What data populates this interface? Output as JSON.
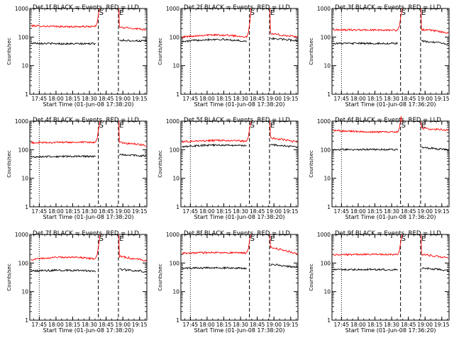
{
  "chart_data": [
    {
      "type": "line",
      "title": "Det 1f BLACK = Events, RED = LLD",
      "xlabel": "Start Time (01-Jun-08 17:38:20)",
      "ylabel": "Counts/sec",
      "yscale": "log",
      "ylim": [
        1,
        1000
      ],
      "yticks": [
        "1",
        "10",
        "100",
        "1000"
      ],
      "xticks": [
        "17:45",
        "18:00",
        "18:15",
        "18:30",
        "18:45",
        "19:00",
        "19:15"
      ],
      "markers": [
        {
          "time": "17:45",
          "style": "dotted"
        },
        {
          "time": "18:38",
          "style": "dashed",
          "label": "S"
        },
        {
          "time": "18:56",
          "style": "dashed",
          "label": "E"
        }
      ],
      "series": [
        {
          "color": "#ff0000",
          "start": 250,
          "mid": 240,
          "end": 235,
          "after": 220,
          "end_after": 185
        },
        {
          "color": "#000000",
          "start": 62,
          "mid": 60,
          "end": 59,
          "after": 78,
          "end_after": 72
        }
      ]
    },
    {
      "type": "line",
      "title": "Det 2f BLACK = Events, RED = LLD",
      "xlabel": "Start Time (01-Jun-08 17:38:20)",
      "ylabel": "Counts/sec",
      "yscale": "log",
      "ylim": [
        1,
        1000
      ],
      "yticks": [
        "1",
        "10",
        "100",
        "1000"
      ],
      "xticks": [
        "17:45",
        "18:00",
        "18:15",
        "18:30",
        "18:45",
        "19:00",
        "19:15"
      ],
      "markers": [
        {
          "time": "17:45",
          "style": "dotted"
        },
        {
          "time": "18:38",
          "style": "dashed",
          "label": "S"
        },
        {
          "time": "18:56",
          "style": "dashed",
          "label": "E"
        }
      ],
      "series": [
        {
          "color": "#ff0000",
          "start": 100,
          "mid": 118,
          "end": 102,
          "after": 130,
          "end_after": 100
        },
        {
          "color": "#000000",
          "start": 68,
          "mid": 82,
          "end": 70,
          "after": 90,
          "end_after": 75
        }
      ]
    },
    {
      "type": "line",
      "title": "Det 3f BLACK = Events, RED = LLD",
      "xlabel": "Start Time (01-Jun-08 17:36:20)",
      "ylabel": "Counts/sec",
      "yscale": "log",
      "ylim": [
        1,
        1000
      ],
      "yticks": [
        "1",
        "10",
        "100",
        "1000"
      ],
      "xticks": [
        "17:45",
        "18:00",
        "18:15",
        "18:30",
        "18:45",
        "19:00",
        "19:15"
      ],
      "markers": [
        {
          "time": "17:45",
          "style": "dotted"
        },
        {
          "time": "18:38",
          "style": "dashed",
          "label": "S"
        },
        {
          "time": "18:56",
          "style": "dashed",
          "label": "E"
        }
      ],
      "series": [
        {
          "color": "#ff0000",
          "start": 180,
          "mid": 180,
          "end": 175,
          "after": 185,
          "end_after": 140
        },
        {
          "color": "#000000",
          "start": 60,
          "mid": 60,
          "end": 60,
          "after": 72,
          "end_after": 58
        }
      ]
    },
    {
      "type": "line",
      "title": "Det 4f BLACK = Events, RED = LLD",
      "xlabel": "Start Time (01-Jun-08 17:38:20)",
      "ylabel": "Counts/sec",
      "yscale": "log",
      "ylim": [
        1,
        1000
      ],
      "yticks": [
        "1",
        "10",
        "100",
        "1000"
      ],
      "xticks": [
        "17:45",
        "18:00",
        "18:15",
        "18:30",
        "18:45",
        "19:00",
        "19:15"
      ],
      "markers": [
        {
          "time": "17:45",
          "style": "dotted"
        },
        {
          "time": "18:38",
          "style": "dashed",
          "label": "S"
        },
        {
          "time": "18:56",
          "style": "dashed",
          "label": "E"
        }
      ],
      "series": [
        {
          "color": "#ff0000",
          "start": 175,
          "mid": 178,
          "end": 180,
          "after": 180,
          "end_after": 140
        },
        {
          "color": "#000000",
          "start": 56,
          "mid": 57,
          "end": 58,
          "after": 68,
          "end_after": 60
        }
      ]
    },
    {
      "type": "line",
      "title": "Det 5f BLACK = Events, RED = LLD",
      "xlabel": "Start Time (01-Jun-08 17:38:20)",
      "ylabel": "Counts/sec",
      "yscale": "log",
      "ylim": [
        1,
        1000
      ],
      "yticks": [
        "1",
        "10",
        "100",
        "1000"
      ],
      "xticks": [
        "17:45",
        "18:00",
        "18:15",
        "18:30",
        "18:45",
        "19:00",
        "19:15"
      ],
      "markers": [
        {
          "time": "17:45",
          "style": "dotted"
        },
        {
          "time": "18:38",
          "style": "dashed",
          "label": "S"
        },
        {
          "time": "18:56",
          "style": "dashed",
          "label": "E"
        }
      ],
      "series": [
        {
          "color": "#ff0000",
          "start": 190,
          "mid": 205,
          "end": 200,
          "after": 260,
          "end_after": 185
        },
        {
          "color": "#000000",
          "start": 130,
          "mid": 140,
          "end": 138,
          "after": 150,
          "end_after": 125
        }
      ]
    },
    {
      "type": "line",
      "title": "Det 6f BLACK = Events, RED = LLD",
      "xlabel": "Start Time (01-Jun-08 17:36:20)",
      "ylabel": "Counts/sec",
      "yscale": "log",
      "ylim": [
        1,
        1000
      ],
      "yticks": [
        "1",
        "10",
        "100",
        "1000"
      ],
      "xticks": [
        "17:45",
        "18:00",
        "18:15",
        "18:30",
        "18:45",
        "19:00",
        "19:15"
      ],
      "markers": [
        {
          "time": "17:45",
          "style": "dotted"
        },
        {
          "time": "18:38",
          "style": "dashed",
          "label": "S"
        },
        {
          "time": "18:56",
          "style": "dashed",
          "label": "E"
        }
      ],
      "series": [
        {
          "color": "#ff0000",
          "start": 470,
          "mid": 450,
          "end": 420,
          "after": 560,
          "end_after": 480
        },
        {
          "color": "#000000",
          "start": 100,
          "mid": 102,
          "end": 100,
          "after": 120,
          "end_after": 98
        }
      ]
    },
    {
      "type": "line",
      "title": "Det 7f BLACK = Events, RED = LLD",
      "xlabel": "Start Time (01-Jun-08 17:38:20)",
      "ylabel": "Counts/sec",
      "yscale": "log",
      "ylim": [
        1,
        1000
      ],
      "yticks": [
        "1",
        "10",
        "100",
        "1000"
      ],
      "xticks": [
        "17:45",
        "18:00",
        "18:15",
        "18:30",
        "18:45",
        "19:00",
        "19:15"
      ],
      "markers": [
        {
          "time": "17:45",
          "style": "dotted"
        },
        {
          "time": "18:38",
          "style": "dashed",
          "label": "S"
        },
        {
          "time": "18:56",
          "style": "dashed",
          "label": "E"
        }
      ],
      "series": [
        {
          "color": "#ff0000",
          "start": 130,
          "mid": 155,
          "end": 140,
          "after": 170,
          "end_after": 120
        },
        {
          "color": "#000000",
          "start": 52,
          "mid": 56,
          "end": 52,
          "after": 60,
          "end_after": 50
        }
      ]
    },
    {
      "type": "line",
      "title": "Det 8f BLACK = Events, RED = LLD",
      "xlabel": "Start Time (01-Jun-08 17:38:20)",
      "ylabel": "Counts/sec",
      "yscale": "log",
      "ylim": [
        1,
        1000
      ],
      "yticks": [
        "1",
        "10",
        "100",
        "1000"
      ],
      "xticks": [
        "17:45",
        "18:00",
        "18:15",
        "18:30",
        "18:45",
        "19:00",
        "19:15"
      ],
      "markers": [
        {
          "time": "17:45",
          "style": "dotted"
        },
        {
          "time": "18:38",
          "style": "dashed",
          "label": "S"
        },
        {
          "time": "18:56",
          "style": "dashed",
          "label": "E"
        }
      ],
      "series": [
        {
          "color": "#ff0000",
          "start": 220,
          "mid": 230,
          "end": 225,
          "after": 350,
          "end_after": 210
        },
        {
          "color": "#000000",
          "start": 65,
          "mid": 68,
          "end": 65,
          "after": 90,
          "end_after": 70
        }
      ]
    },
    {
      "type": "line",
      "title": "Det 9f BLACK = Events, RED = LLD",
      "xlabel": "Start Time (01-Jun-08 17:36:20)",
      "ylabel": "Counts/sec",
      "yscale": "log",
      "ylim": [
        1,
        1000
      ],
      "yticks": [
        "1",
        "10",
        "100",
        "1000"
      ],
      "xticks": [
        "17:45",
        "18:00",
        "18:15",
        "18:30",
        "18:45",
        "19:00",
        "19:15"
      ],
      "markers": [
        {
          "time": "17:45",
          "style": "dotted"
        },
        {
          "time": "18:38",
          "style": "dashed",
          "label": "S"
        },
        {
          "time": "18:56",
          "style": "dashed",
          "label": "E"
        }
      ],
      "series": [
        {
          "color": "#ff0000",
          "start": 190,
          "mid": 200,
          "end": 195,
          "after": 200,
          "end_after": 150
        },
        {
          "color": "#000000",
          "start": 58,
          "mid": 60,
          "end": 58,
          "after": 68,
          "end_after": 55
        }
      ]
    }
  ]
}
